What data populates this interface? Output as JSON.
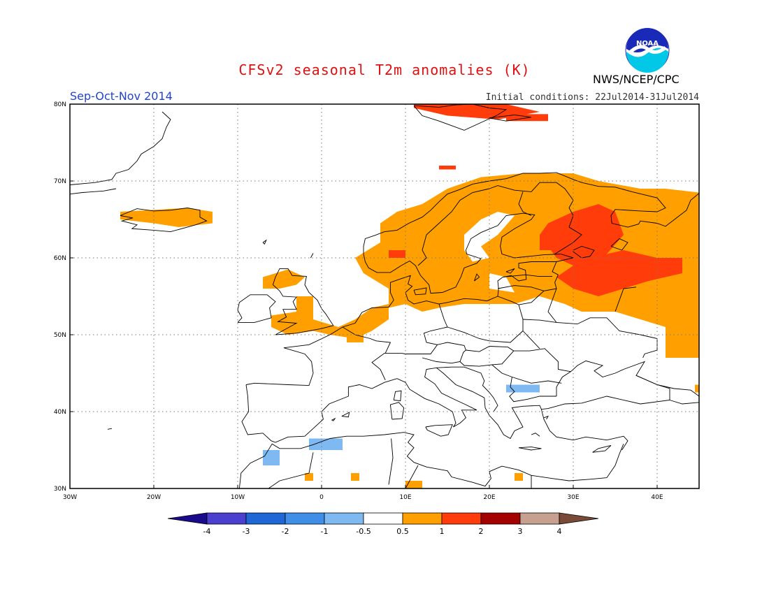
{
  "header": {
    "title": "CFSv2 seasonal T2m anomalies (K)",
    "period": "Sep-Oct-Nov 2014",
    "initial_conditions": "Initial conditions: 22Jul2014-31Jul2014",
    "agency": "NWS/NCEP/CPC",
    "logo_text": "NOAA"
  },
  "axes": {
    "lat_labels": [
      "80N",
      "70N",
      "60N",
      "50N",
      "40N",
      "30N"
    ],
    "lon_labels": [
      "30W",
      "20W",
      "10W",
      "0",
      "10E",
      "20E",
      "30E",
      "40E"
    ]
  },
  "legend": {
    "labels": [
      "-4",
      "-3",
      "-2",
      "-1",
      "-0.5",
      "0.5",
      "1",
      "2",
      "3",
      "4"
    ],
    "colors": [
      "#1a0a8c",
      "#4b3fd0",
      "#1f66d6",
      "#3f8fe8",
      "#7fb9f2",
      "#ffffff",
      "#ffa000",
      "#ff3c0a",
      "#a30000",
      "#c8a090",
      "#7a4a38"
    ]
  },
  "colors": {
    "warm_1": "#ffa000",
    "warm_2": "#ff3c0a",
    "cool_1": "#7fb9f2"
  }
}
